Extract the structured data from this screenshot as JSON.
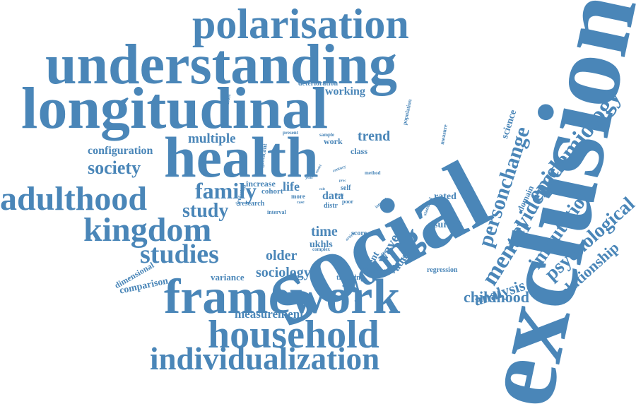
{
  "word_cloud": {
    "color": "#4a86b8",
    "words": [
      "social",
      "exclusion",
      "understanding",
      "longitudinal",
      "health",
      "polarisation",
      "framework",
      "household",
      "individualization",
      "adulthood",
      "kingdom",
      "studies",
      "young",
      "family",
      "study",
      "society",
      "configuration",
      "multiple",
      "epidemiology",
      "personchange",
      "evidence",
      "mental",
      "imputation",
      "psychological",
      "relationship",
      "analysis",
      "childhood",
      "sociology",
      "older",
      "time",
      "ukhls",
      "working",
      "trend",
      "wave",
      "adult",
      "latent",
      "woman",
      "comparison",
      "variance",
      "measurement",
      "dimensional",
      "thinking",
      "survey",
      "rated",
      "regression",
      "science",
      "domain",
      "life",
      "data",
      "increase",
      "cohort",
      "research",
      "interval",
      "class",
      "work",
      "deterioration",
      "association",
      "significant",
      "deviation",
      "present",
      "sample",
      "population",
      "measure",
      "method",
      "year",
      "century",
      "model",
      "self",
      "score",
      "internet",
      "article",
      "conclusion",
      "complex",
      "distr",
      "poor",
      "more",
      "case",
      "role",
      "proc",
      "result",
      "standard"
    ]
  }
}
